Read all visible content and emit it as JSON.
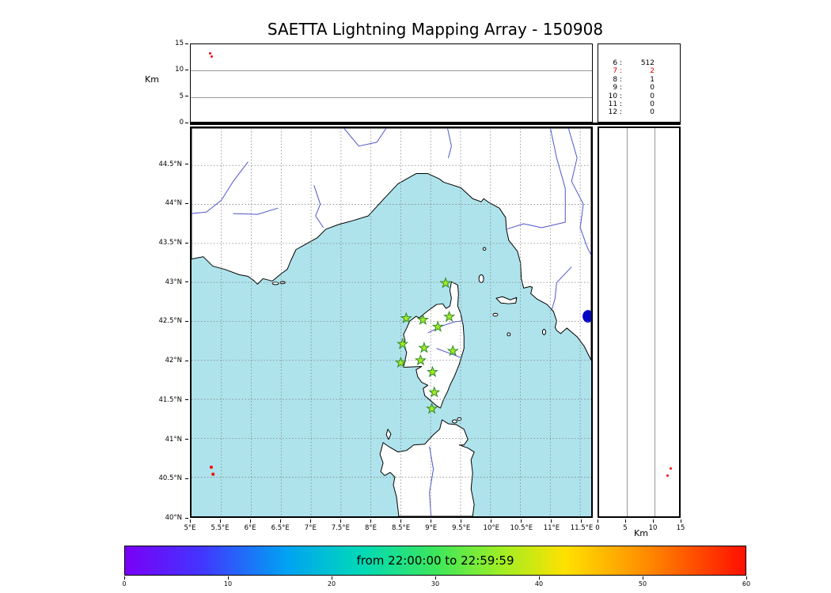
{
  "figure": {
    "title": "SAETTA Lightning Mapping Array - 150908"
  },
  "chart_data": {
    "type": "scatter",
    "title": "SAETTA Lightning Mapping Array - 150908",
    "subtitle": "",
    "legend_position": "none",
    "grid": true,
    "axes": {
      "lon": {
        "min": 5.0,
        "max": 11.684,
        "ticks": [
          5,
          5.5,
          6,
          6.5,
          7,
          7.5,
          8,
          8.5,
          9,
          9.5,
          10,
          10.5,
          11,
          11.5
        ],
        "tick_labels": [
          "5°E",
          "5.5°E",
          "6°E",
          "6.5°E",
          "7°E",
          "7.5°E",
          "8°E",
          "8.5°E",
          "9°E",
          "9.5°E",
          "10°E",
          "10.5°E",
          "11°E",
          "11.5°E"
        ]
      },
      "lat": {
        "min": 40.0,
        "max": 44.979,
        "ticks": [
          40,
          40.5,
          41,
          41.5,
          42,
          42.5,
          43,
          43.5,
          44,
          44.5
        ],
        "tick_labels": [
          "40°N",
          "40.5°N",
          "41°N",
          "41.5°N",
          "42°N",
          "42.5°N",
          "43°N",
          "43.5°N",
          "44°N",
          "44.5°N"
        ]
      },
      "alt_km": {
        "min": 0,
        "max": 15,
        "ticks": [
          0,
          5,
          10,
          15
        ],
        "tick_labels": [
          "0",
          "5",
          "10",
          "15"
        ],
        "gridlines": [
          5,
          10
        ],
        "label": "Km"
      }
    },
    "stations_lonlat": [
      [
        9.25,
        42.99
      ],
      [
        8.59,
        42.54
      ],
      [
        8.87,
        42.52
      ],
      [
        9.31,
        42.56
      ],
      [
        9.12,
        42.43
      ],
      [
        8.53,
        42.21
      ],
      [
        8.89,
        42.16
      ],
      [
        9.37,
        42.12
      ],
      [
        8.5,
        41.97
      ],
      [
        8.83,
        42.0
      ],
      [
        9.03,
        41.85
      ],
      [
        9.06,
        41.59
      ],
      [
        9.02,
        41.38
      ]
    ],
    "sources": [
      {
        "lon": 5.33,
        "lat": 40.63,
        "alt_km": 13.2
      },
      {
        "lon": 5.36,
        "lat": 40.54,
        "alt_km": 12.6
      }
    ],
    "station_histogram": {
      "rows": [
        {
          "stations": "6",
          "count": "512",
          "highlight": false
        },
        {
          "stations": "7",
          "count": "2",
          "highlight": true
        },
        {
          "stations": "8",
          "count": "1",
          "highlight": false
        },
        {
          "stations": "9",
          "count": "0",
          "highlight": false
        },
        {
          "stations": "10",
          "count": "0",
          "highlight": false
        },
        {
          "stations": "11",
          "count": "0",
          "highlight": false
        },
        {
          "stations": "12",
          "count": "0",
          "highlight": false
        }
      ]
    },
    "colorbar": {
      "label": "from 22:00:00 to 22:59:59",
      "min": 0,
      "max": 60,
      "ticks": [
        0,
        10,
        20,
        30,
        40,
        50,
        60
      ],
      "tick_labels": [
        "0",
        "10",
        "20",
        "30",
        "40",
        "50",
        "60"
      ],
      "gradient": [
        "#7a00f5 0%",
        "#4433ff 12%",
        "#00a2f3 26%",
        "#00d9b8 38%",
        "#3be75c 50%",
        "#a2ee22 61%",
        "#ffe100 71%",
        "#ff8c00 84%",
        "#ff0f00 100%"
      ]
    },
    "style": {
      "sea": "#aee3ec",
      "land": "#ffffff",
      "coast": "#000000",
      "river": "#4d55cc",
      "grid": "#808080",
      "panel_grid": "#999999",
      "star_fill": "#a6e822",
      "star_edge": "#2d8a2d",
      "source": "#ff0000",
      "lake": "#0008c8",
      "highlight_text": "#dd0000"
    }
  }
}
